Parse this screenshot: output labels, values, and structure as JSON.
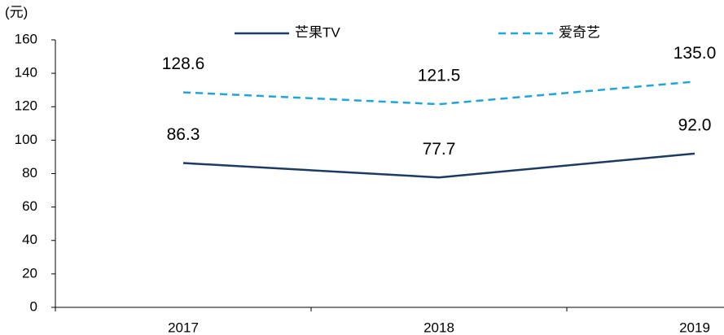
{
  "chart_data": {
    "type": "line",
    "y_label": "(元)",
    "categories": [
      "2017",
      "2018",
      "2019"
    ],
    "series": [
      {
        "name": "芒果TV",
        "color": "#1b3a64",
        "dash": false,
        "values": [
          86.3,
          77.7,
          92.0
        ],
        "value_labels": [
          "86.3",
          "77.7",
          "92.0"
        ]
      },
      {
        "name": "爱奇艺",
        "color": "#20a4de",
        "dash": true,
        "values": [
          128.6,
          121.5,
          135.0
        ],
        "value_labels": [
          "128.6",
          "121.5",
          "135.0"
        ]
      }
    ],
    "ylim": [
      0,
      160
    ],
    "yticks": [
      0,
      20,
      40,
      60,
      80,
      100,
      120,
      140,
      160
    ],
    "grid": false
  }
}
